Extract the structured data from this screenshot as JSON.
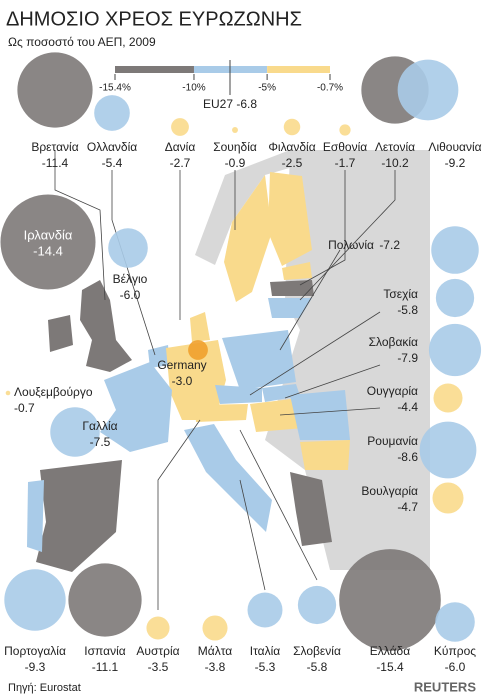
{
  "title": "ΔΗΜΟΣΙΟ ΧΡΕΟΣ ΕΥΡΩΖΩΝΗΣ",
  "subtitle": "Ως ποσοστό του ΑΕΠ, 2009",
  "legend": {
    "ticks": [
      {
        "value": -15.4,
        "label": "-15.4%"
      },
      {
        "value": -10,
        "label": "-10%"
      },
      {
        "value": -5,
        "label": "-5%"
      },
      {
        "value": -0.7,
        "label": "-0.7%"
      }
    ],
    "colors": [
      "#7d7978",
      "#a9cbe8",
      "#f9da8c"
    ],
    "eu27": "EU27 -6.8"
  },
  "countries": [
    {
      "name": "Βρετανία",
      "value": -11.4
    },
    {
      "name": "Ολλανδία",
      "value": -5.4
    },
    {
      "name": "Δανία",
      "value": -2.7
    },
    {
      "name": "Σουηδία",
      "value": -0.9
    },
    {
      "name": "Φιλανδία",
      "value": -2.5
    },
    {
      "name": "Εσθονία",
      "value": -1.7
    },
    {
      "name": "Λετονία",
      "value": -10.2
    },
    {
      "name": "Λιθουανία",
      "value": -9.2
    },
    {
      "name": "Ιρλανδία",
      "value": -14.4
    },
    {
      "name": "Βέλγιο",
      "value": -6,
      "value_label": "-6.0"
    },
    {
      "name": "Λουξεμβούργο",
      "value": -0.7
    },
    {
      "name": "Γαλλία",
      "value": -7.5
    },
    {
      "name": "Germany",
      "value": -3,
      "value_label": "-3.0",
      "color": "#f0a02c"
    },
    {
      "name": "Πολωνία",
      "value": -7.2
    },
    {
      "name": "Τσεχία",
      "value": -5.8
    },
    {
      "name": "Σλοβακία",
      "value": -7.9
    },
    {
      "name": "Ουγγαρία",
      "value": -4.4
    },
    {
      "name": "Ρουμανία",
      "value": -8.6
    },
    {
      "name": "Βουλγαρία",
      "value": -4.7
    },
    {
      "name": "Πορτογαλία",
      "value": -9.3
    },
    {
      "name": "Ισπανία",
      "value": -11.1
    },
    {
      "name": "Αυστρία",
      "value": -3.5
    },
    {
      "name": "Μάλτα",
      "value": -3.8
    },
    {
      "name": "Ιταλία",
      "value": -5.3
    },
    {
      "name": "Σλοβενία",
      "value": -5.8
    },
    {
      "name": "Ελλάδα",
      "value": -15.4
    },
    {
      "name": "Κύπρος",
      "value": -6,
      "value_label": "-6.0"
    }
  ],
  "source": "Πηγή: Eurostat",
  "brand": "REUTERS"
}
